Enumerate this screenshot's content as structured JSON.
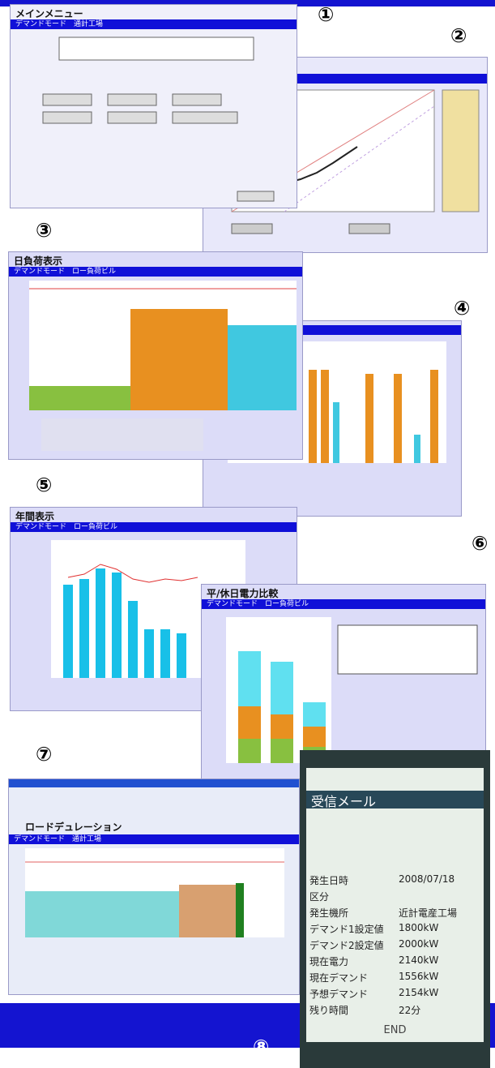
{
  "markers": [
    "①",
    "②",
    "③",
    "④",
    "⑤",
    "⑥",
    "⑦",
    "⑧"
  ],
  "panels": {
    "menu": {
      "title": "メインメニュー",
      "bar": "デマンドモード　通計工場"
    },
    "daily": {
      "title": "日負荷表示",
      "bar": "デマンドモード　ロー負荷ビル"
    },
    "yearly": {
      "title": "年間表示",
      "bar": "デマンドモード　ロー負荷ビル"
    },
    "compare": {
      "title": "平/休日電力比較",
      "bar": "デマンドモード　ロー負荷ビル"
    },
    "duration": {
      "title": "ロードデュレーション",
      "bar": "デマンドモード　通計工場"
    }
  },
  "phone": {
    "header": "受信メール",
    "rows": [
      [
        "発生日時",
        "2008/07/18"
      ],
      [
        "区分",
        ""
      ],
      [
        "発生機所",
        "近計電産工場"
      ],
      [
        "デマンド1設定値",
        "1800kW"
      ],
      [
        "デマンド2設定値",
        "2000kW"
      ],
      [
        "現在電力",
        "2140kW"
      ],
      [
        "現在デマンド",
        "1556kW"
      ],
      [
        "予想デマンド",
        "2154kW"
      ],
      [
        "残り時間",
        "22分"
      ]
    ],
    "footer": "END"
  }
}
